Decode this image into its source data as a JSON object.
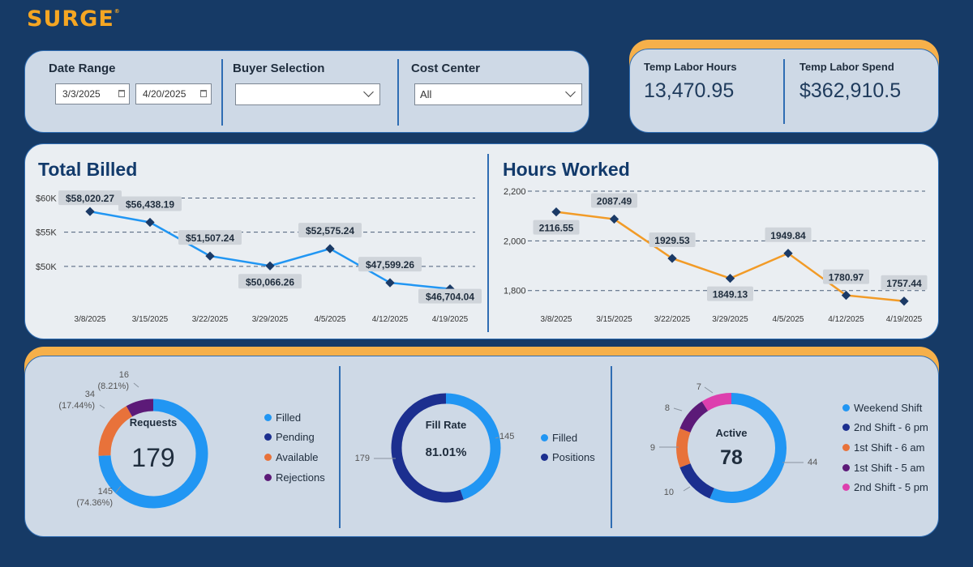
{
  "logo": {
    "text": "SURGE",
    "mark": "®"
  },
  "filters": {
    "date_range": {
      "label": "Date Range",
      "start": "3/3/2025",
      "end": "4/20/2025"
    },
    "buyer": {
      "label": "Buyer Selection",
      "value": ""
    },
    "cost_center": {
      "label": "Cost Center",
      "value": "All"
    }
  },
  "kpis": {
    "hours": {
      "label": "Temp Labor Hours",
      "value": "13,470.95"
    },
    "spend": {
      "label": "Temp Labor Spend",
      "value": "$362,910.5"
    }
  },
  "colors": {
    "blue": "#2196f3",
    "navy": "#1c2f8f",
    "orange": "#f29b27",
    "donut_orange": "#e8723a",
    "purple": "#5c1a78",
    "pink": "#dd3fae",
    "title": "#123a6b"
  },
  "chart_data": [
    {
      "type": "line",
      "title": "Total Billed",
      "x": [
        "3/8/2025",
        "3/15/2025",
        "3/22/2025",
        "3/29/2025",
        "4/5/2025",
        "4/12/2025",
        "4/19/2025"
      ],
      "y_ticks": [
        "$60K",
        "$55K",
        "$50K"
      ],
      "y_tick_values": [
        60000,
        55000,
        50000
      ],
      "ylim": [
        45000,
        61000
      ],
      "series": [
        {
          "values": [
            58020.27,
            56438.19,
            51507.24,
            50066.26,
            52575.24,
            47599.26,
            46704.04
          ]
        }
      ],
      "data_labels": [
        "$58,020.27",
        "$56,438.19",
        "$51,507.24",
        "$50,066.26",
        "$52,575.24",
        "$47,599.26",
        "$46,704.04"
      ],
      "grid": true
    },
    {
      "type": "line",
      "title": "Hours Worked",
      "x": [
        "3/8/2025",
        "3/15/2025",
        "3/22/2025",
        "3/29/2025",
        "4/5/2025",
        "4/12/2025",
        "4/19/2025"
      ],
      "y_ticks": [
        "2,200",
        "2,000",
        "1,800"
      ],
      "y_tick_values": [
        2200,
        2000,
        1800
      ],
      "ylim": [
        1760,
        2200
      ],
      "series": [
        {
          "values": [
            2116.55,
            2087.49,
            1929.53,
            1849.13,
            1949.84,
            1780.97,
            1757.44
          ]
        }
      ],
      "data_labels": [
        "2116.55",
        "2087.49",
        "1929.53",
        "1849.13",
        "1949.84",
        "1780.97",
        "1757.44"
      ],
      "grid": true
    },
    {
      "type": "pie",
      "title": "Requests",
      "center_value": "179",
      "categories": [
        "Filled",
        "Pending",
        "Available",
        "Rejections"
      ],
      "values": [
        145,
        0,
        34,
        16
      ],
      "slice_labels": [
        {
          "lines": [
            "145",
            "(74.36%)"
          ]
        },
        null,
        {
          "lines": [
            "34",
            "(17.44%)"
          ]
        },
        {
          "lines": [
            "16",
            "(8.21%)"
          ]
        }
      ]
    },
    {
      "type": "pie",
      "title": "Fill Rate",
      "center_value": "81.01%",
      "categories": [
        "Filled",
        "Positions"
      ],
      "values": [
        145,
        179
      ],
      "slice_labels": [
        {
          "lines": [
            "145"
          ]
        },
        {
          "lines": [
            "179"
          ]
        }
      ]
    },
    {
      "type": "pie",
      "title": "Active",
      "center_value": "78",
      "categories": [
        "Weekend Shift",
        "2nd Shift - 6 pm",
        "1st Shift - 6 am",
        "1st Shift - 5 am",
        "2nd Shift - 5 pm"
      ],
      "values": [
        44,
        10,
        9,
        8,
        7
      ],
      "slice_labels": [
        {
          "lines": [
            "44"
          ]
        },
        {
          "lines": [
            "10"
          ]
        },
        {
          "lines": [
            "9"
          ]
        },
        {
          "lines": [
            "8"
          ]
        },
        {
          "lines": [
            "7"
          ]
        }
      ]
    }
  ]
}
